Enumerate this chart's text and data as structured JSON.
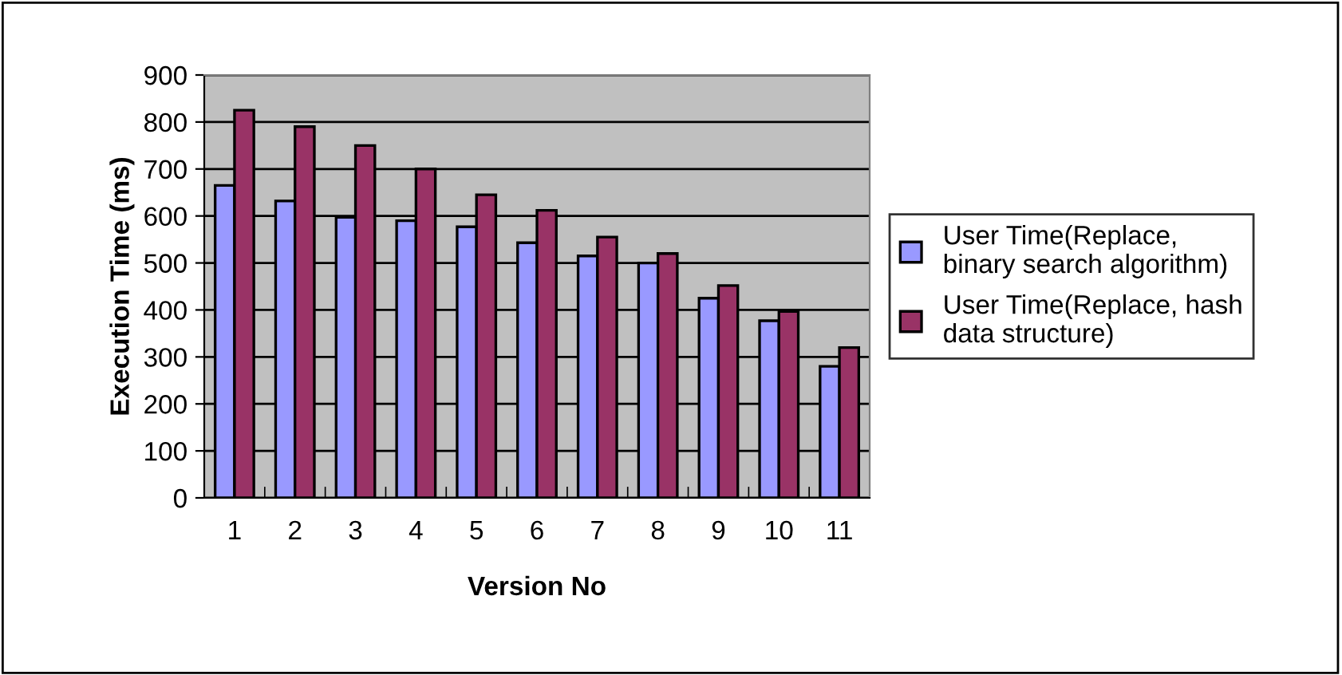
{
  "chart_data": {
    "type": "bar",
    "xlabel": "Version No",
    "ylabel": "Execution Time (ms)",
    "categories": [
      "1",
      "2",
      "3",
      "4",
      "5",
      "6",
      "7",
      "8",
      "9",
      "10",
      "11"
    ],
    "series": [
      {
        "name": "User Time(Replace,\nbinary search algorithm)",
        "color": "#9999ff",
        "values": [
          665,
          632,
          597,
          590,
          577,
          543,
          515,
          500,
          425,
          377,
          280
        ]
      },
      {
        "name": "User Time(Replace, hash\ndata structure)",
        "color": "#993366",
        "values": [
          825,
          790,
          750,
          700,
          645,
          612,
          555,
          520,
          452,
          397,
          320
        ]
      }
    ],
    "ylim": [
      0,
      900
    ],
    "yticks": [
      0,
      100,
      200,
      300,
      400,
      500,
      600,
      700,
      800,
      900
    ],
    "grid": "y",
    "legend": "right"
  }
}
